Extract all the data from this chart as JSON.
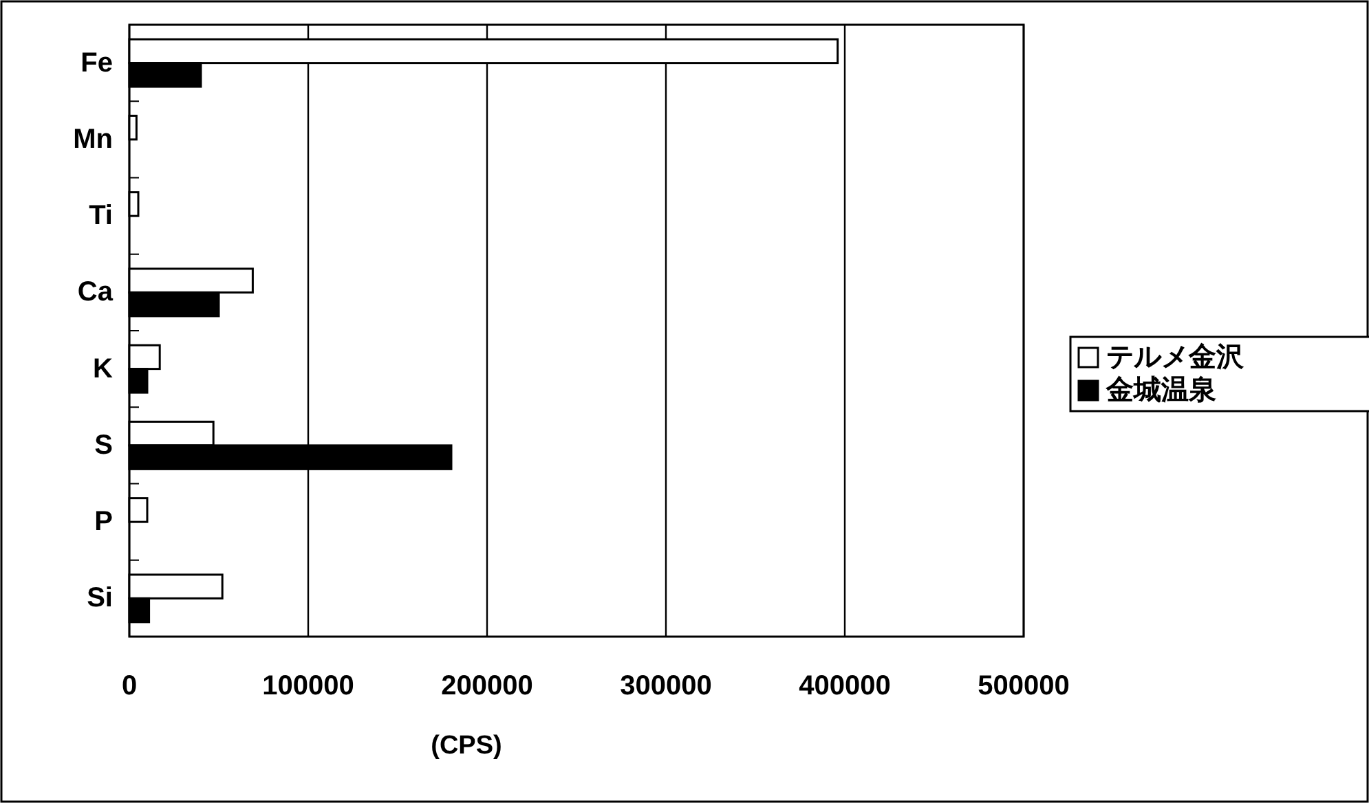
{
  "chart_data": {
    "type": "bar",
    "orientation": "horizontal",
    "xlabel": "(CPS)",
    "categories": [
      "Fe",
      "Mn",
      "Ti",
      "Ca",
      "K",
      "S",
      "P",
      "Si"
    ],
    "series": [
      {
        "name": "テルメ金沢",
        "color": "#ffffff",
        "values": [
          396000,
          4000,
          5000,
          69000,
          17000,
          47000,
          10000,
          52000
        ]
      },
      {
        "name": "金城温泉",
        "color": "#000000",
        "values": [
          40000,
          null,
          null,
          50000,
          10000,
          180000,
          null,
          11000
        ]
      }
    ],
    "xlim": [
      0,
      500000
    ],
    "xticks": [
      0,
      100000,
      200000,
      300000,
      400000,
      500000
    ],
    "grid": "x",
    "legend": "right"
  }
}
